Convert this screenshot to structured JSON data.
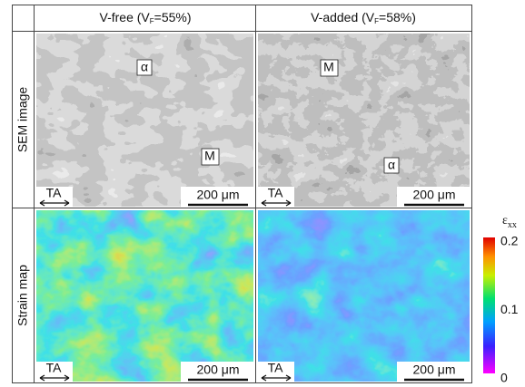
{
  "columns": [
    {
      "prefix": "V-free (V",
      "sub": "F",
      "suffix": "=55%)"
    },
    {
      "prefix": "V-added (V",
      "sub": "F",
      "suffix": "=58%)"
    }
  ],
  "rows": [
    "SEM image",
    "Strain map"
  ],
  "panels": [
    {
      "labels": [
        "α",
        "M"
      ],
      "direction": "TA",
      "scale": "200 μm"
    },
    {
      "labels": [
        "M",
        "α"
      ],
      "direction": "TA",
      "scale": "200 μm"
    },
    {
      "direction": "TA",
      "scale": "200 μm"
    },
    {
      "direction": "TA",
      "scale": "200 μm"
    }
  ],
  "colorbar": {
    "symbol": "ε",
    "sub": "xx",
    "ticks": [
      "0.2",
      "0.1",
      "0"
    ]
  }
}
